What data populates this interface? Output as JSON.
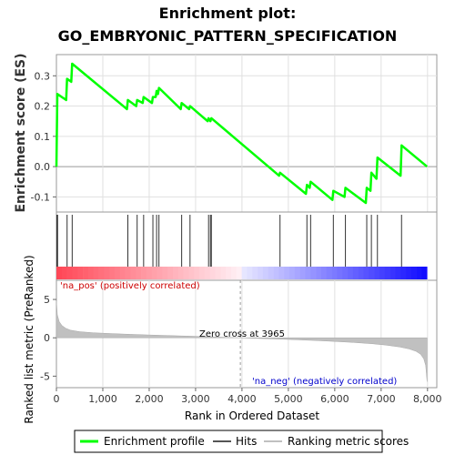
{
  "chart_data": {
    "type": "line",
    "title_line1": "Enrichment plot:",
    "title_line2": "GO_EMBRYONIC_PATTERN_SPECIFICATION",
    "es_panel": {
      "ylabel": "Enrichment score (ES)",
      "ylim": [
        -0.15,
        0.37
      ],
      "yticks": [
        -0.1,
        0.0,
        0.1,
        0.2,
        0.3
      ],
      "ytick_labels": [
        "-0.1",
        "0.0",
        "0.1",
        "0.2",
        "0.3"
      ],
      "series": [
        {
          "name": "Enrichment profile",
          "color": "#00ff00",
          "points": [
            [
              0,
              0.0
            ],
            [
              20,
              0.24
            ],
            [
              210,
              0.22
            ],
            [
              230,
              0.29
            ],
            [
              320,
              0.28
            ],
            [
              340,
              0.34
            ],
            [
              1520,
              0.19
            ],
            [
              1540,
              0.22
            ],
            [
              1720,
              0.2
            ],
            [
              1740,
              0.22
            ],
            [
              1860,
              0.21
            ],
            [
              1880,
              0.23
            ],
            [
              2060,
              0.21
            ],
            [
              2080,
              0.23
            ],
            [
              2140,
              0.23
            ],
            [
              2160,
              0.25
            ],
            [
              2190,
              0.24
            ],
            [
              2210,
              0.26
            ],
            [
              2680,
              0.19
            ],
            [
              2700,
              0.21
            ],
            [
              2860,
              0.19
            ],
            [
              2880,
              0.2
            ],
            [
              3260,
              0.15
            ],
            [
              3280,
              0.16
            ],
            [
              3320,
              0.15
            ],
            [
              3340,
              0.16
            ],
            [
              4800,
              -0.03
            ],
            [
              4820,
              -0.02
            ],
            [
              5380,
              -0.09
            ],
            [
              5400,
              -0.06
            ],
            [
              5460,
              -0.07
            ],
            [
              5480,
              -0.05
            ],
            [
              5950,
              -0.11
            ],
            [
              5970,
              -0.08
            ],
            [
              6210,
              -0.1
            ],
            [
              6230,
              -0.07
            ],
            [
              6670,
              -0.12
            ],
            [
              6690,
              -0.07
            ],
            [
              6770,
              -0.08
            ],
            [
              6790,
              -0.02
            ],
            [
              6900,
              -0.04
            ],
            [
              6920,
              0.03
            ],
            [
              7420,
              -0.03
            ],
            [
              7440,
              0.07
            ],
            [
              7990,
              0.0
            ]
          ]
        }
      ],
      "zero_line": 0.0
    },
    "hits": {
      "label": "Hits",
      "positions": [
        10,
        25,
        230,
        340,
        1540,
        1740,
        1880,
        2080,
        2160,
        2210,
        2700,
        2880,
        3280,
        3320,
        3340,
        4820,
        5400,
        5480,
        5970,
        6230,
        6690,
        6790,
        6920,
        7440
      ]
    },
    "ranking_panel": {
      "ylabel": "Ranked list metric (PreRanked)",
      "xlabel": "Rank in Ordered Dataset",
      "ylim": [
        -6.5,
        7.5
      ],
      "yticks": [
        -5,
        0,
        5
      ],
      "ytick_labels": [
        "-5",
        "0",
        "5"
      ],
      "xlim": [
        0,
        8200
      ],
      "xticks": [
        0,
        1000,
        2000,
        3000,
        4000,
        5000,
        6000,
        7000,
        8000
      ],
      "xtick_labels": [
        "0",
        "1,000",
        "2,000",
        "3,000",
        "4,000",
        "5,000",
        "6,000",
        "7,000",
        "8,000"
      ],
      "zero_cross": 3965,
      "n_genes": 7990,
      "profile": [
        [
          0,
          4.8
        ],
        [
          20,
          3.0
        ],
        [
          60,
          2.1
        ],
        [
          120,
          1.6
        ],
        [
          200,
          1.25
        ],
        [
          300,
          1.0
        ],
        [
          500,
          0.8
        ],
        [
          800,
          0.66
        ],
        [
          1200,
          0.55
        ],
        [
          1600,
          0.45
        ],
        [
          2000,
          0.37
        ],
        [
          2400,
          0.3
        ],
        [
          2800,
          0.23
        ],
        [
          3200,
          0.15
        ],
        [
          3600,
          0.07
        ],
        [
          3965,
          0.0
        ],
        [
          4400,
          -0.09
        ],
        [
          4800,
          -0.17
        ],
        [
          5200,
          -0.26
        ],
        [
          5600,
          -0.36
        ],
        [
          6000,
          -0.47
        ],
        [
          6400,
          -0.6
        ],
        [
          6800,
          -0.77
        ],
        [
          7100,
          -0.95
        ],
        [
          7400,
          -1.2
        ],
        [
          7600,
          -1.45
        ],
        [
          7750,
          -1.75
        ],
        [
          7850,
          -2.15
        ],
        [
          7920,
          -2.75
        ],
        [
          7960,
          -3.6
        ],
        [
          7990,
          -5.7
        ]
      ]
    },
    "annotations": {
      "pos": "'na_pos' (positively correlated)",
      "neg": "'na_neg' (negatively correlated)",
      "zero": "Zero cross at 3965"
    },
    "legend": {
      "placement": "bottom",
      "items": [
        {
          "label": "Enrichment profile",
          "color": "#00ff00"
        },
        {
          "label": "Hits",
          "color": "#000000"
        },
        {
          "label": "Ranking metric scores",
          "color": "#c0c0c0"
        }
      ]
    }
  }
}
